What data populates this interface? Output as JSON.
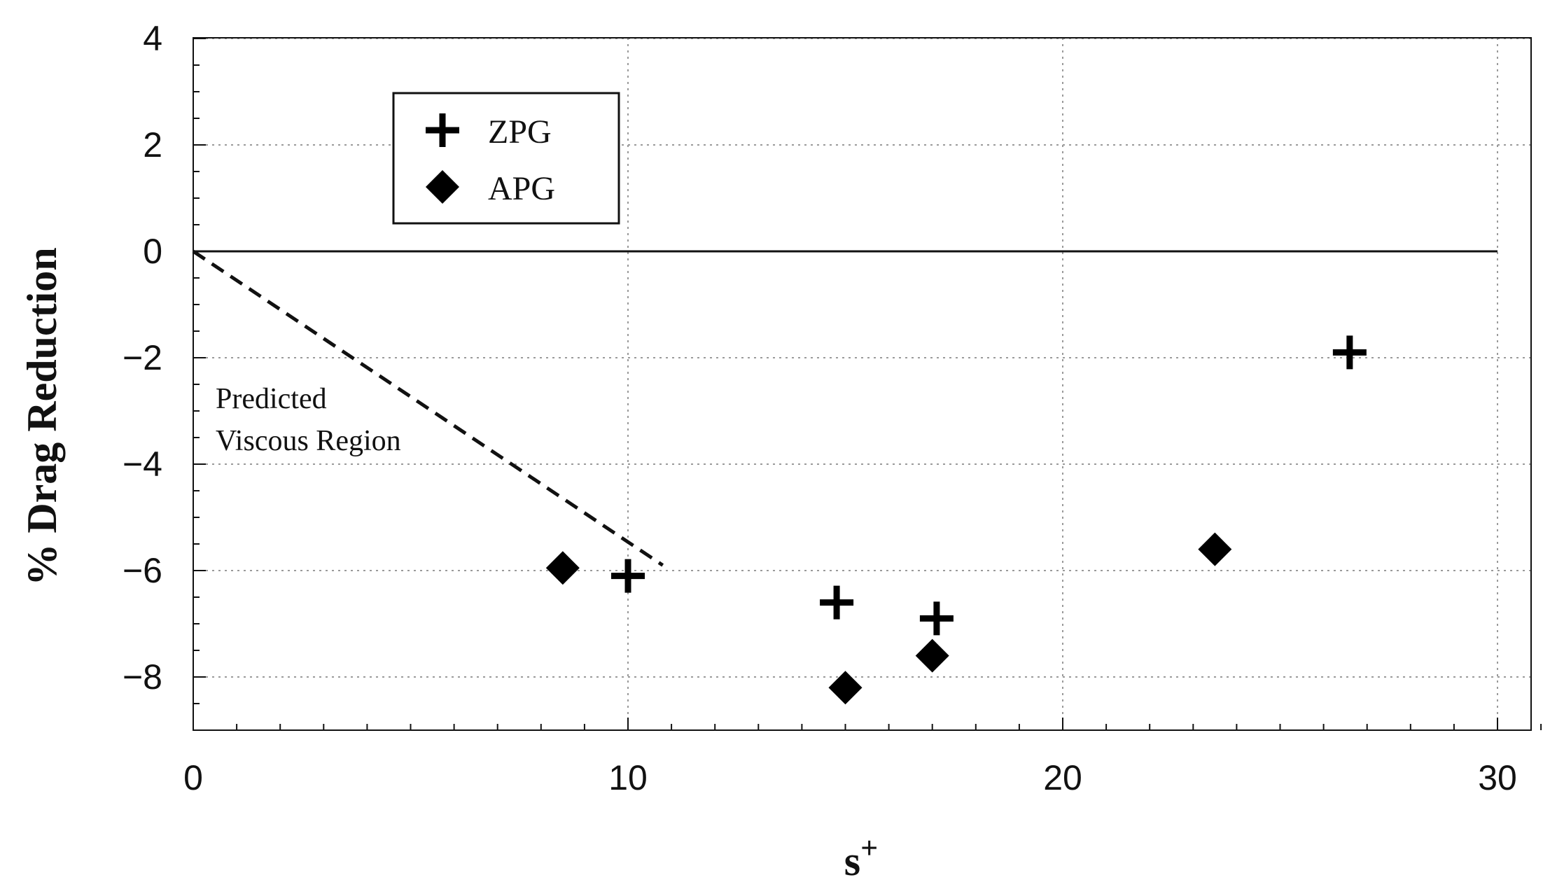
{
  "chart_data": {
    "type": "scatter",
    "title": "",
    "xlabel": "s",
    "xlabel_superscript": "+",
    "ylabel": "% Drag Reduction",
    "xlim": [
      0,
      31
    ],
    "ylim": [
      -9,
      4
    ],
    "x_ticks": [
      0,
      10,
      20,
      30
    ],
    "x_tick_labels": [
      "0",
      "10",
      "20",
      "30"
    ],
    "y_ticks": [
      4,
      2,
      0,
      -2,
      -4,
      -6,
      -8
    ],
    "y_tick_labels": [
      "4",
      "2",
      "0",
      "−2",
      "−4",
      "−6",
      "−8"
    ],
    "grid": "dotted",
    "legend_position": "top-left",
    "series": [
      {
        "name": "ZPG",
        "marker": "plus",
        "color": "#000000",
        "points": [
          [
            10.0,
            -6.1
          ],
          [
            14.8,
            -6.6
          ],
          [
            17.1,
            -6.9
          ],
          [
            26.6,
            -1.9
          ]
        ]
      },
      {
        "name": "APG",
        "marker": "diamond",
        "color": "#000000",
        "points": [
          [
            8.5,
            -5.95
          ],
          [
            15.0,
            -8.2
          ],
          [
            17.0,
            -7.6
          ],
          [
            23.5,
            -5.6
          ]
        ]
      }
    ],
    "reference_lines": [
      {
        "style": "solid",
        "from": [
          0,
          0
        ],
        "to": [
          30,
          0
        ]
      },
      {
        "style": "dashed",
        "from": [
          0,
          0
        ],
        "to": [
          10.8,
          -5.9
        ]
      }
    ],
    "annotation": {
      "lines": [
        "Predicted",
        "Viscous Region"
      ]
    }
  }
}
